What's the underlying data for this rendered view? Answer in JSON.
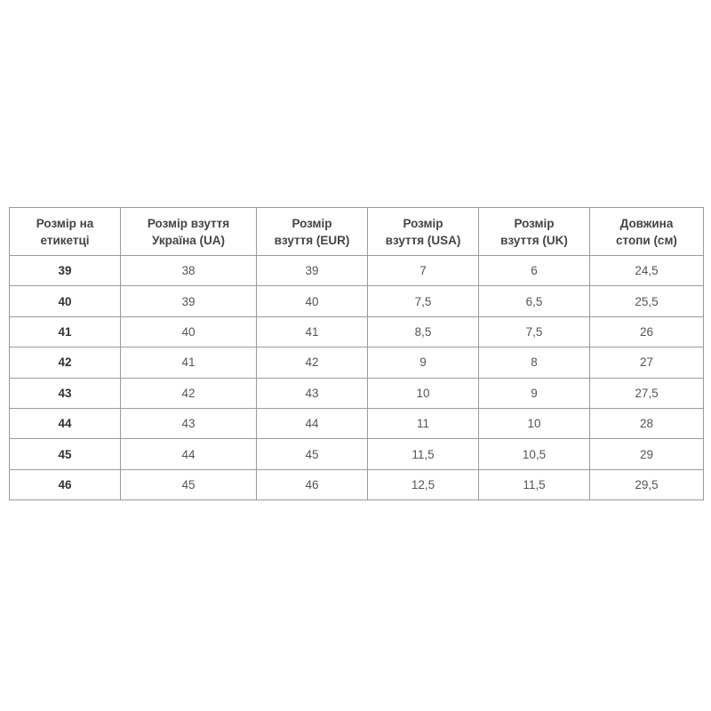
{
  "table": {
    "headers": [
      [
        "Розмір на",
        "етикетці"
      ],
      [
        "Розмір взуття",
        "Україна (UA)"
      ],
      [
        "Розмір",
        "взуття (EUR)"
      ],
      [
        "Розмір",
        "взуття (USA)"
      ],
      [
        "Розмір",
        "взуття (UK)"
      ],
      [
        "Довжина",
        "стопи (см)"
      ]
    ],
    "rows": [
      [
        "39",
        "38",
        "39",
        "7",
        "6",
        "24,5"
      ],
      [
        "40",
        "39",
        "40",
        "7,5",
        "6,5",
        "25,5"
      ],
      [
        "41",
        "40",
        "41",
        "8,5",
        "7,5",
        "26"
      ],
      [
        "42",
        "41",
        "42",
        "9",
        "8",
        "27"
      ],
      [
        "43",
        "42",
        "43",
        "10",
        "9",
        "27,5"
      ],
      [
        "44",
        "43",
        "44",
        "11",
        "10",
        "28"
      ],
      [
        "45",
        "44",
        "45",
        "11,5",
        "10,5",
        "29"
      ],
      [
        "46",
        "45",
        "46",
        "12,5",
        "11,5",
        "29,5"
      ]
    ]
  }
}
